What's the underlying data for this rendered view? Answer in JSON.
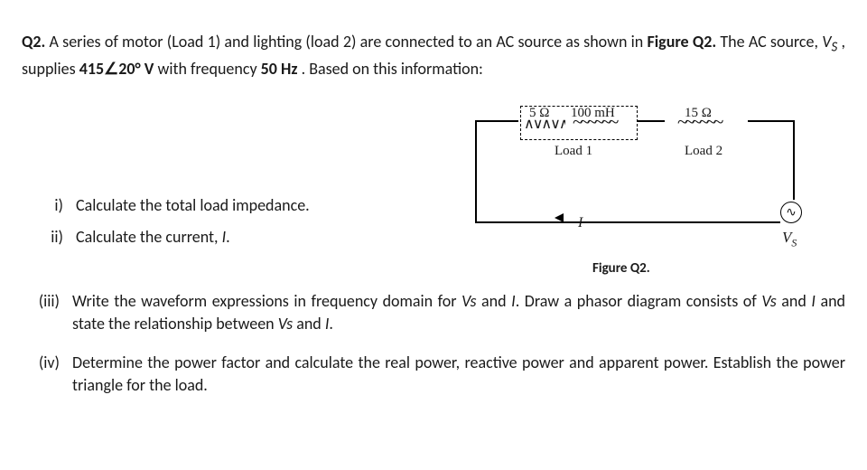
{
  "question": {
    "number": "Q2.",
    "prefix": "A series of motor (Load 1) and lighting (load 2) are connected to an AC source as shown in ",
    "figref": "Figure Q2.",
    "mid": " The AC source, ",
    "vs": "V",
    "vs_sub": "S",
    "mid2": ", supplies ",
    "volt": "415∠20° V",
    "mid3": " with frequency ",
    "freq": "50 Hz",
    "tail": ". Based on this information:"
  },
  "circuit": {
    "r1": "5 Ω",
    "l1": "100 mH",
    "r2": "15 Ω",
    "load1": "Load 1",
    "load2": "Load 2",
    "current": "I",
    "source_sym": "∿",
    "vs": "V",
    "vs_sub": "S",
    "caption": "Figure Q2."
  },
  "parts": {
    "i": {
      "label": "i)",
      "text": "Calculate the total load impedance."
    },
    "ii": {
      "label": "ii)",
      "text": "Calculate the current, I."
    },
    "iii": {
      "label": "(iii)",
      "text": "Write the waveform expressions in frequency domain for Vs and I. Draw a phasor diagram consists of Vs and I and state the relationship between Vs and I."
    },
    "iv": {
      "label": "(iv)",
      "text": "Determine the power factor and calculate the real power, reactive power and apparent power. Establish the power triangle for the load."
    }
  },
  "style": {
    "body_fontsize": 18,
    "body_color": "#1a1a1a",
    "background": "#ffffff",
    "figure_border_color": "#000000",
    "font_family": "Calibri, 'Segoe UI', Arial, sans-serif",
    "serif_family": "'Times New Roman', serif"
  }
}
